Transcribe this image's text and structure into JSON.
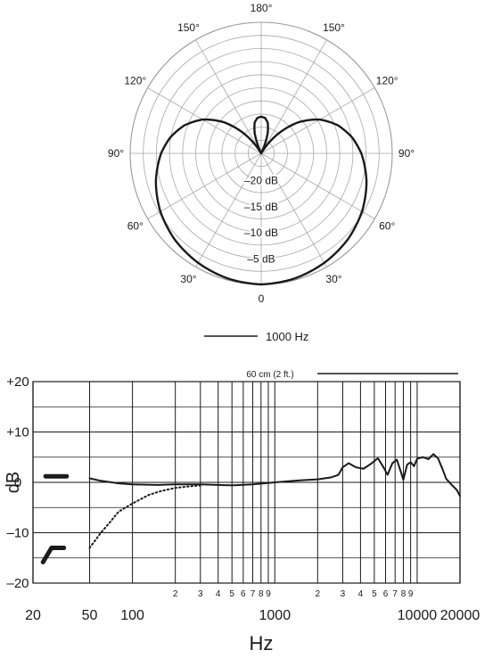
{
  "chart_data": [
    {
      "type": "polar",
      "radial_unit": "dB",
      "angle_labels": [
        {
          "deg": 0,
          "label": "0"
        },
        {
          "deg": 30,
          "label": "30°"
        },
        {
          "deg": -30,
          "label": "30°"
        },
        {
          "deg": 60,
          "label": "60°"
        },
        {
          "deg": -60,
          "label": "60°"
        },
        {
          "deg": 90,
          "label": "90°"
        },
        {
          "deg": -90,
          "label": "90°"
        },
        {
          "deg": 120,
          "label": "120°"
        },
        {
          "deg": -120,
          "label": "120°"
        },
        {
          "deg": 150,
          "label": "150°"
        },
        {
          "deg": -150,
          "label": "150°"
        },
        {
          "deg": 180,
          "label": "180°"
        }
      ],
      "ring_labels": [
        {
          "db": -20,
          "label": "–20 dB"
        },
        {
          "db": -15,
          "label": "–15 dB"
        },
        {
          "db": -10,
          "label": "–10 dB"
        },
        {
          "db": -5,
          "label": "–5 dB"
        }
      ],
      "rlim": [
        -25,
        0
      ],
      "series": [
        {
          "name": "1000 Hz",
          "points": [
            {
              "angle": 0,
              "db": 0
            },
            {
              "angle": 15,
              "db": -0.3
            },
            {
              "angle": 30,
              "db": -0.9
            },
            {
              "angle": 45,
              "db": -1.7
            },
            {
              "angle": 60,
              "db": -2.8
            },
            {
              "angle": 75,
              "db": -4.2
            },
            {
              "angle": 90,
              "db": -5.9
            },
            {
              "angle": 100,
              "db": -7.4
            },
            {
              "angle": 110,
              "db": -9.4
            },
            {
              "angle": 120,
              "db": -12.1
            },
            {
              "angle": 130,
              "db": -15.8
            },
            {
              "angle": 140,
              "db": -20.5
            },
            {
              "angle": 148,
              "db": -24.5
            },
            {
              "angle": 155,
              "db": -25
            },
            {
              "angle": 162,
              "db": -21
            },
            {
              "angle": 168,
              "db": -19
            },
            {
              "angle": 174,
              "db": -18.2
            },
            {
              "angle": 180,
              "db": -18
            }
          ]
        }
      ],
      "legend": "bottom"
    },
    {
      "type": "line",
      "title": "",
      "xlabel": "Hz",
      "ylabel": "dB",
      "xscale": "log",
      "xlim": [
        20,
        20000
      ],
      "ylim": [
        -20,
        20
      ],
      "y_ticks": [
        {
          "value": 20,
          "label": "+20"
        },
        {
          "value": 10,
          "label": "+10"
        },
        {
          "value": 0,
          "label": "0"
        },
        {
          "value": -10,
          "label": "–10"
        },
        {
          "value": -20,
          "label": "–20"
        }
      ],
      "x_ticks": [
        {
          "value": 20,
          "label": "20"
        },
        {
          "value": 50,
          "label": "50"
        },
        {
          "value": 100,
          "label": "100"
        },
        {
          "value": 1000,
          "label": "1000"
        },
        {
          "value": 10000,
          "label": "10000"
        },
        {
          "value": 20000,
          "label": "20000"
        }
      ],
      "x_minor_ticks": [
        {
          "value": 200,
          "label": "2"
        },
        {
          "value": 300,
          "label": "3"
        },
        {
          "value": 400,
          "label": "4"
        },
        {
          "value": 500,
          "label": "5"
        },
        {
          "value": 600,
          "label": "6"
        },
        {
          "value": 700,
          "label": "7"
        },
        {
          "value": 800,
          "label": "8"
        },
        {
          "value": 900,
          "label": "9"
        },
        {
          "value": 2000,
          "label": "2"
        },
        {
          "value": 3000,
          "label": "3"
        },
        {
          "value": 4000,
          "label": "4"
        },
        {
          "value": 5000,
          "label": "5"
        },
        {
          "value": 6000,
          "label": "6"
        },
        {
          "value": 7000,
          "label": "7"
        },
        {
          "value": 8000,
          "label": "8"
        },
        {
          "value": 9000,
          "label": "9"
        }
      ],
      "grid": true,
      "annotation": {
        "label": "60 cm (2 ft.)"
      },
      "series": [
        {
          "style": "solid",
          "points": [
            [
              50,
              0.8
            ],
            [
              60,
              0.3
            ],
            [
              80,
              -0.2
            ],
            [
              100,
              -0.4
            ],
            [
              150,
              -0.5
            ],
            [
              200,
              -0.4
            ],
            [
              300,
              -0.4
            ],
            [
              400,
              -0.5
            ],
            [
              500,
              -0.6
            ],
            [
              700,
              -0.4
            ],
            [
              1000,
              0
            ],
            [
              1500,
              0.4
            ],
            [
              2000,
              0.6
            ],
            [
              2500,
              1
            ],
            [
              2800,
              1.5
            ],
            [
              3000,
              3
            ],
            [
              3300,
              3.8
            ],
            [
              3700,
              3
            ],
            [
              4200,
              2.7
            ],
            [
              4800,
              3.8
            ],
            [
              5300,
              4.8
            ],
            [
              5800,
              3
            ],
            [
              6200,
              1.5
            ],
            [
              6700,
              3.8
            ],
            [
              7200,
              4.5
            ],
            [
              7700,
              2
            ],
            [
              8000,
              0.5
            ],
            [
              8500,
              3.5
            ],
            [
              9000,
              4
            ],
            [
              9500,
              3.2
            ],
            [
              10000,
              4.7
            ],
            [
              11000,
              5
            ],
            [
              12000,
              4.6
            ],
            [
              13000,
              5.6
            ],
            [
              14000,
              4.8
            ],
            [
              15000,
              2.8
            ],
            [
              16000,
              0.7
            ],
            [
              17500,
              -0.5
            ],
            [
              19000,
              -1.5
            ],
            [
              20000,
              -2.7
            ]
          ]
        },
        {
          "style": "dotted",
          "points": [
            [
              50,
              -13
            ],
            [
              60,
              -10
            ],
            [
              70,
              -7.8
            ],
            [
              80,
              -5.8
            ],
            [
              100,
              -4.2
            ],
            [
              130,
              -2.5
            ],
            [
              160,
              -1.7
            ],
            [
              200,
              -1.1
            ],
            [
              250,
              -0.8
            ],
            [
              300,
              -0.6
            ]
          ]
        }
      ],
      "markers": [
        {
          "name": "flat-switch-marker",
          "shape": "flat",
          "level": 1.2
        },
        {
          "name": "lowcut-switch-marker",
          "shape": "lowcut",
          "level": -13
        }
      ]
    }
  ]
}
